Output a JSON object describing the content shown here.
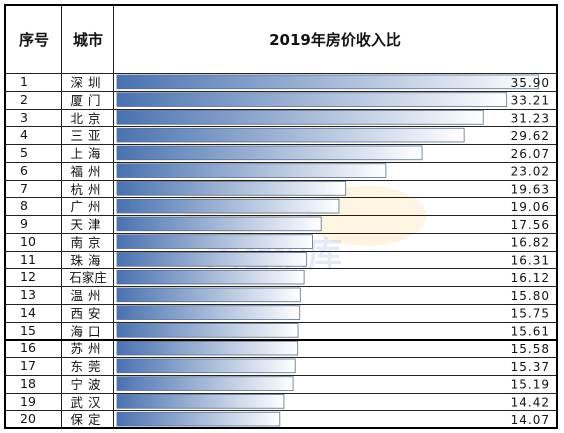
{
  "chart_data": {
    "type": "bar",
    "orientation": "horizontal",
    "title": "2019年房价收入比",
    "headers": {
      "index": "序号",
      "city": "城市",
      "value": "2019年房价收入比"
    },
    "categories": [
      "深圳",
      "厦门",
      "北京",
      "三亚",
      "上海",
      "福州",
      "杭州",
      "广州",
      "天津",
      "南京",
      "珠海",
      "石家庄",
      "温州",
      "西安",
      "海口",
      "苏州",
      "东莞",
      "宁波",
      "武汉",
      "保定"
    ],
    "index": [
      "1",
      "2",
      "3",
      "4",
      "5",
      "6",
      "7",
      "8",
      "9",
      "10",
      "11",
      "12",
      "13",
      "14",
      "15",
      "16",
      "17",
      "18",
      "19",
      "20"
    ],
    "values": [
      35.9,
      33.21,
      31.23,
      29.62,
      26.07,
      23.02,
      19.63,
      19.06,
      17.56,
      16.82,
      16.31,
      16.12,
      15.8,
      15.75,
      15.61,
      15.58,
      15.37,
      15.19,
      14.42,
      14.07
    ],
    "value_labels": [
      "35.90",
      "33.21",
      "31.23",
      "29.62",
      "26.07",
      "23.02",
      "19.63",
      "19.06",
      "17.56",
      "16.82",
      "16.31",
      "16.12",
      "15.80",
      "15.75",
      "15.61",
      "15.58",
      "15.37",
      "15.19",
      "14.42",
      "14.07"
    ],
    "xlim": [
      0,
      37.2
    ],
    "bar_color_start": "#ffffff",
    "bar_color_end": "#4a72b0",
    "separator_after_row": 14
  }
}
